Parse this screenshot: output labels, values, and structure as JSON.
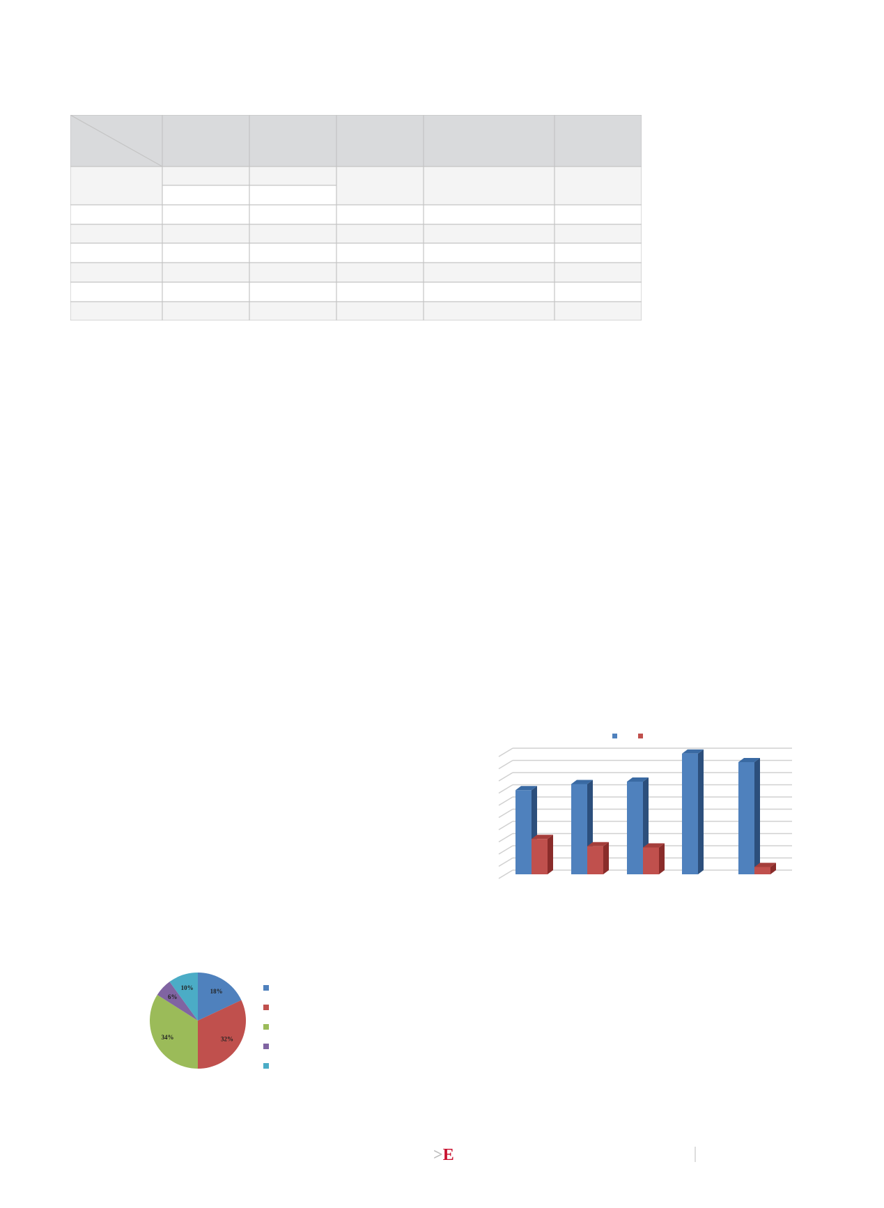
{
  "table": {
    "columns": 6,
    "header_fill": "#d9dadc",
    "alt_row_fill": "#f4f4f4",
    "border_color": "#c4c4c4"
  },
  "footer": {
    "logo_text": "KE"
  },
  "chart_data": [
    {
      "type": "bar",
      "style": "3d-clustered-column",
      "categories": [
        "",
        "",
        "",
        "",
        ""
      ],
      "series": [
        {
          "color": "#4f81bd",
          "values": [
            6.9,
            7.4,
            7.6,
            9.9,
            9.2
          ]
        },
        {
          "color": "#c0504d",
          "values": [
            2.9,
            2.3,
            2.2,
            0,
            0.6
          ]
        }
      ],
      "ylim": [
        0,
        10
      ],
      "gridlines": true,
      "grid_count": 10,
      "legend": "top"
    },
    {
      "type": "pie",
      "slices": [
        {
          "label": "18%",
          "value": 18,
          "color": "#4f81bd"
        },
        {
          "label": "32%",
          "value": 32,
          "color": "#c0504d"
        },
        {
          "label": "34%",
          "value": 34,
          "color": "#9bbb59"
        },
        {
          "label": "6%",
          "value": 6,
          "color": "#8064a2"
        },
        {
          "label": "10%",
          "value": 10,
          "color": "#4bacc6"
        }
      ],
      "legend": "right"
    }
  ]
}
